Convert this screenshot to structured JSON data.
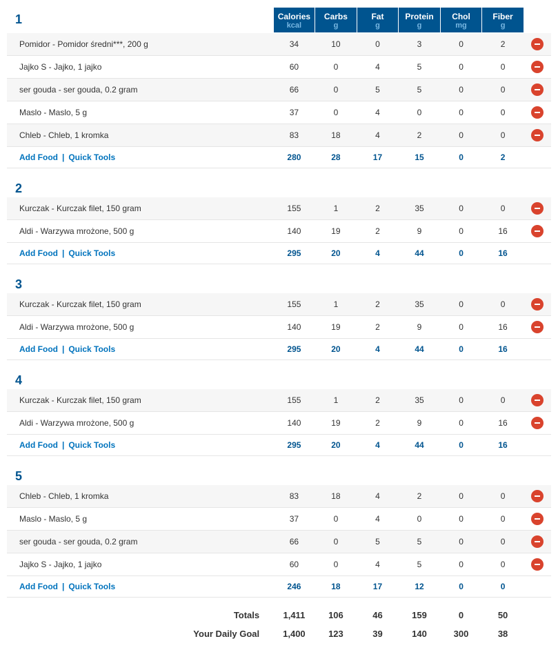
{
  "colors": {
    "header_bg": "#00548f",
    "header_fg": "#ffffff",
    "header_unit_fg": "#78b7e2",
    "meal_title_fg": "#00548f",
    "link_fg": "#0073bd",
    "row_alt_bg": "#f6f6f6",
    "row_bg": "#ffffff",
    "border": "#e5e5e5",
    "remove_bg": "#d9432d",
    "totals_fg": "#333333"
  },
  "labels": {
    "add_food": "Add Food",
    "quick_tools": "Quick Tools",
    "totals": "Totals",
    "daily_goal": "Your Daily Goal"
  },
  "columns": [
    {
      "label": "Calories",
      "unit": "kcal"
    },
    {
      "label": "Carbs",
      "unit": "g"
    },
    {
      "label": "Fat",
      "unit": "g"
    },
    {
      "label": "Protein",
      "unit": "g"
    },
    {
      "label": "Chol",
      "unit": "mg"
    },
    {
      "label": "Fiber",
      "unit": "g"
    }
  ],
  "meals": [
    {
      "title": "1",
      "foods": [
        {
          "name": "Pomidor - Pomidor średni***, 200 g",
          "values": [
            "34",
            "10",
            "0",
            "3",
            "0",
            "2"
          ]
        },
        {
          "name": "Jajko S - Jajko, 1 jajko",
          "values": [
            "60",
            "0",
            "4",
            "5",
            "0",
            "0"
          ]
        },
        {
          "name": "ser gouda - ser gouda, 0.2 gram",
          "values": [
            "66",
            "0",
            "5",
            "5",
            "0",
            "0"
          ]
        },
        {
          "name": "Maslo - Maslo, 5 g",
          "values": [
            "37",
            "0",
            "4",
            "0",
            "0",
            "0"
          ]
        },
        {
          "name": "Chleb - Chleb, 1 kromka",
          "values": [
            "83",
            "18",
            "4",
            "2",
            "0",
            "0"
          ]
        }
      ],
      "subtotal": [
        "280",
        "28",
        "17",
        "15",
        "0",
        "2"
      ]
    },
    {
      "title": "2",
      "foods": [
        {
          "name": "Kurczak - Kurczak filet, 150 gram",
          "values": [
            "155",
            "1",
            "2",
            "35",
            "0",
            "0"
          ]
        },
        {
          "name": "Aldi - Warzywa mrożone, 500 g",
          "values": [
            "140",
            "19",
            "2",
            "9",
            "0",
            "16"
          ]
        }
      ],
      "subtotal": [
        "295",
        "20",
        "4",
        "44",
        "0",
        "16"
      ]
    },
    {
      "title": "3",
      "foods": [
        {
          "name": "Kurczak - Kurczak filet, 150 gram",
          "values": [
            "155",
            "1",
            "2",
            "35",
            "0",
            "0"
          ]
        },
        {
          "name": "Aldi - Warzywa mrożone, 500 g",
          "values": [
            "140",
            "19",
            "2",
            "9",
            "0",
            "16"
          ]
        }
      ],
      "subtotal": [
        "295",
        "20",
        "4",
        "44",
        "0",
        "16"
      ]
    },
    {
      "title": "4",
      "foods": [
        {
          "name": "Kurczak - Kurczak filet, 150 gram",
          "values": [
            "155",
            "1",
            "2",
            "35",
            "0",
            "0"
          ]
        },
        {
          "name": "Aldi - Warzywa mrożone, 500 g",
          "values": [
            "140",
            "19",
            "2",
            "9",
            "0",
            "16"
          ]
        }
      ],
      "subtotal": [
        "295",
        "20",
        "4",
        "44",
        "0",
        "16"
      ]
    },
    {
      "title": "5",
      "foods": [
        {
          "name": "Chleb - Chleb, 1 kromka",
          "values": [
            "83",
            "18",
            "4",
            "2",
            "0",
            "0"
          ]
        },
        {
          "name": "Maslo - Maslo, 5 g",
          "values": [
            "37",
            "0",
            "4",
            "0",
            "0",
            "0"
          ]
        },
        {
          "name": "ser gouda - ser gouda, 0.2 gram",
          "values": [
            "66",
            "0",
            "5",
            "5",
            "0",
            "0"
          ]
        },
        {
          "name": "Jajko S - Jajko, 1 jajko",
          "values": [
            "60",
            "0",
            "4",
            "5",
            "0",
            "0"
          ]
        }
      ],
      "subtotal": [
        "246",
        "18",
        "17",
        "12",
        "0",
        "0"
      ]
    }
  ],
  "totals": [
    "1,411",
    "106",
    "46",
    "159",
    "0",
    "50"
  ],
  "daily_goal": [
    "1,400",
    "123",
    "39",
    "140",
    "300",
    "38"
  ]
}
